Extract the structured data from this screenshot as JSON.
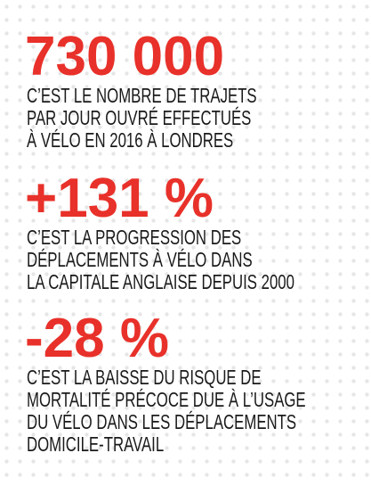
{
  "stats": [
    {
      "figure": "730 000",
      "lines": [
        "C’EST LE NOMBRE DE TRAJETS",
        "PAR JOUR OUVRÉ EFFECTUÉS",
        "À VÉLO EN 2016 À LONDRES"
      ]
    },
    {
      "figure": "+131 %",
      "lines": [
        "C’EST LA PROGRESSION DES",
        "DÉPLACEMENTS À VÉLO DANS",
        "LA CAPITALE ANGLAISE DEPUIS 2000"
      ]
    },
    {
      "figure": "-28 %",
      "lines": [
        "C’EST LA BAISSE DU RISQUE DE",
        "MORTALITÉ PRÉCOCE DUE À L’USAGE",
        "DU VÉLO DANS LES DÉPLACEMENTS",
        "DOMICILE-TRAVAIL"
      ]
    }
  ]
}
